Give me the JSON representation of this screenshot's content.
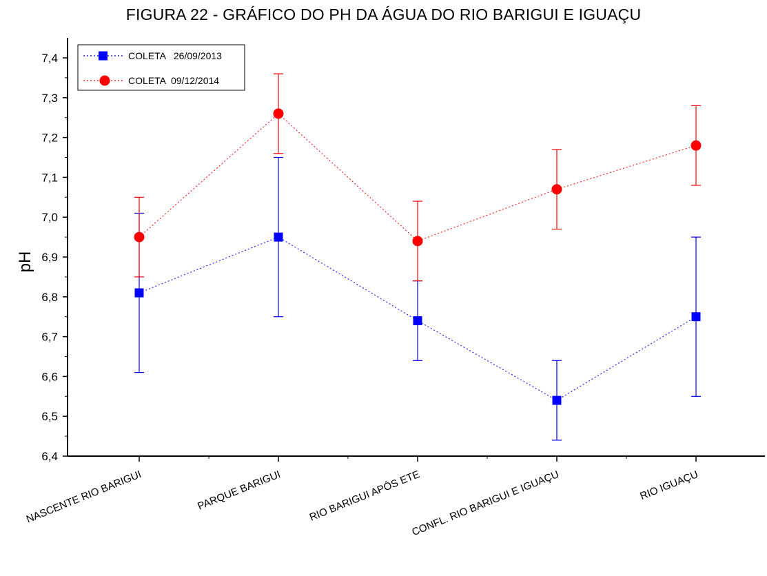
{
  "chart_data": {
    "type": "line",
    "title": "FIGURA 22 -  GRÁFICO DO PH DA ÁGUA DO RIO BARIGUI E IGUAÇU",
    "xlabel": "",
    "ylabel": "pH",
    "ylim": [
      6.4,
      7.45
    ],
    "yticks": [
      "6,4",
      "6,5",
      "6,6",
      "6,7",
      "6,8",
      "6,9",
      "7,0",
      "7,1",
      "7,2",
      "7,3",
      "7,4"
    ],
    "categories": [
      "NASCENTE RIO BARIGUI",
      "PARQUE BARIGUI",
      "RIO BARIGUI APÓS ETE",
      "CONFL. RIO BARIGUI E IGUAÇU",
      "RIO IGUAÇU"
    ],
    "legend_position": "top-left",
    "grid": false,
    "series": [
      {
        "name": "COLETA   26/09/2013",
        "color": "#0000ff",
        "marker": "square",
        "values": [
          6.81,
          6.95,
          6.74,
          6.54,
          6.75
        ],
        "error": [
          0.2,
          0.2,
          0.1,
          0.1,
          0.2
        ]
      },
      {
        "name": "COLETA  09/12/2014",
        "color": "#ff0000",
        "marker": "circle",
        "values": [
          6.95,
          7.26,
          6.94,
          7.07,
          7.18
        ],
        "error": [
          0.1,
          0.1,
          0.1,
          0.1,
          0.1
        ]
      }
    ]
  }
}
